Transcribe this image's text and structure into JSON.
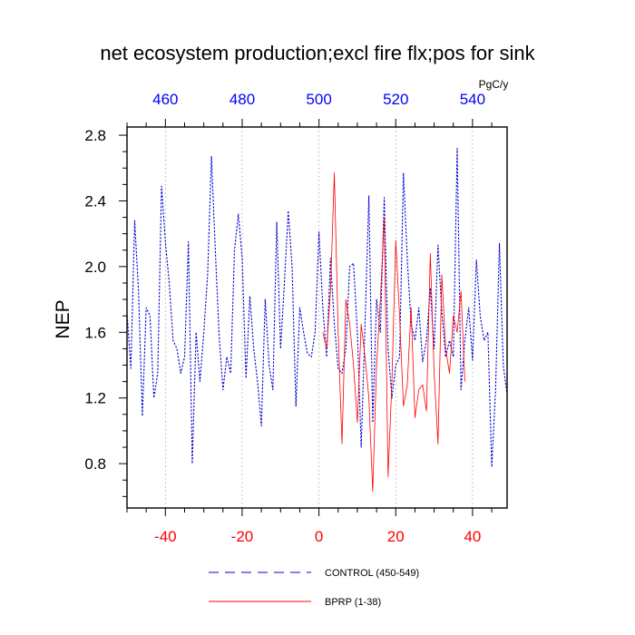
{
  "chart_data": {
    "type": "line",
    "title": "net ecosystem production;excl fire flx;pos for sink",
    "ylabel": "NEP",
    "top_axis_unit": "PgC/y",
    "xlim": [
      -50,
      49
    ],
    "ylim": [
      0.53,
      2.85
    ],
    "bottom_ticks": [
      -40,
      -20,
      0,
      20,
      40
    ],
    "top_ticks": [
      460,
      480,
      500,
      520,
      540
    ],
    "y_ticks": [
      2.8,
      2.4,
      2.0,
      1.6,
      1.2,
      0.8
    ],
    "y_tick_labels": [
      "2.8",
      "2.4",
      "2.0",
      "1.6",
      "1.2",
      "0.8"
    ],
    "bottom_tick_color": "#ff0000",
    "top_tick_color": "#0000ff",
    "grid_x": true,
    "series": [
      {
        "name": "CONTROL (450-549)",
        "color": "#0000cc",
        "style": "dashed",
        "x": [
          -50,
          -49,
          -48,
          -47,
          -46,
          -45,
          -44,
          -43,
          -42,
          -41,
          -40,
          -39,
          -38,
          -37,
          -36,
          -35,
          -34,
          -33,
          -32,
          -31,
          -30,
          -29,
          -28,
          -27,
          -26,
          -25,
          -24,
          -23,
          -22,
          -21,
          -20,
          -19,
          -18,
          -17,
          -16,
          -15,
          -14,
          -13,
          -12,
          -11,
          -10,
          -9,
          -8,
          -7,
          -6,
          -5,
          -4,
          -3,
          -2,
          -1,
          0,
          1,
          2,
          3,
          4,
          5,
          6,
          7,
          8,
          9,
          10,
          11,
          12,
          13,
          14,
          15,
          16,
          17,
          18,
          19,
          20,
          21,
          22,
          23,
          24,
          25,
          26,
          27,
          28,
          29,
          30,
          31,
          32,
          33,
          34,
          35,
          36,
          37,
          38,
          39,
          40,
          41,
          42,
          43,
          44,
          45,
          46,
          47,
          48,
          49
        ],
        "values": [
          1.72,
          1.38,
          2.28,
          1.85,
          1.09,
          1.75,
          1.7,
          1.2,
          1.35,
          2.49,
          2.15,
          1.9,
          1.55,
          1.5,
          1.35,
          1.45,
          2.15,
          0.8,
          1.6,
          1.3,
          1.6,
          1.95,
          2.67,
          2.1,
          1.58,
          1.25,
          1.45,
          1.35,
          2.1,
          2.32,
          2.05,
          1.32,
          1.82,
          1.5,
          1.3,
          1.03,
          1.8,
          1.4,
          1.25,
          2.27,
          1.5,
          1.9,
          2.34,
          2.0,
          1.15,
          1.75,
          1.6,
          1.47,
          1.45,
          1.6,
          2.21,
          1.75,
          1.45,
          2.05,
          1.65,
          1.38,
          1.35,
          1.5,
          2.0,
          2.02,
          1.6,
          0.9,
          1.65,
          2.43,
          1.05,
          1.8,
          1.6,
          2.42,
          1.5,
          1.2,
          1.4,
          1.45,
          2.57,
          2.05,
          1.65,
          1.55,
          1.75,
          1.42,
          1.55,
          1.87,
          1.5,
          2.13,
          1.72,
          1.45,
          1.55,
          1.45,
          2.72,
          1.25,
          1.55,
          1.75,
          1.43,
          2.04,
          1.7,
          1.55,
          1.6,
          0.78,
          1.25,
          2.14,
          1.4,
          1.22
        ]
      },
      {
        "name": "BPRP (1-38)",
        "color": "#ff0000",
        "style": "solid",
        "x": [
          1,
          2,
          3,
          4,
          5,
          6,
          7,
          8,
          9,
          10,
          11,
          12,
          13,
          14,
          15,
          16,
          17,
          18,
          19,
          20,
          21,
          22,
          23,
          24,
          25,
          26,
          27,
          28,
          29,
          30,
          31,
          32,
          33,
          34,
          35,
          36,
          37,
          38
        ],
        "values": [
          1.6,
          1.5,
          1.85,
          2.57,
          1.6,
          0.92,
          1.8,
          1.65,
          1.4,
          1.05,
          1.65,
          1.45,
          1.2,
          0.63,
          1.4,
          1.8,
          2.3,
          0.72,
          1.3,
          2.16,
          1.7,
          1.15,
          1.28,
          1.75,
          1.08,
          1.25,
          1.28,
          1.12,
          2.08,
          1.35,
          0.92,
          1.95,
          1.5,
          1.35,
          1.7,
          1.6,
          1.85,
          1.3
        ]
      }
    ]
  }
}
